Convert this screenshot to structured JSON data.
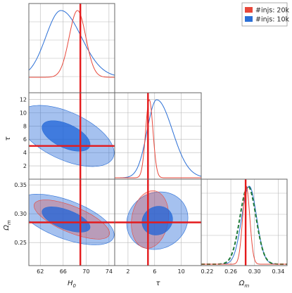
{
  "chart_data": {
    "type": "corner",
    "legend": {
      "placement": "top-right",
      "entries": [
        {
          "label": "#injs: 20k",
          "color": "#e8483b"
        },
        {
          "label": "#injs: 10k",
          "color": "#2b6fd6"
        }
      ]
    },
    "colors": {
      "red": "#e8483b",
      "blue": "#2b6fd6",
      "truth": "#e41a1c",
      "green": "#1f7a3a",
      "blueFill": "#1f63d8",
      "redFill": "#e8483b",
      "grid": "#b8b8b8",
      "frame": "#666666"
    },
    "params": [
      {
        "key": "H0",
        "label": "H",
        "sub": "0",
        "range": [
          60,
          75
        ],
        "ticks": [
          62,
          66,
          70,
          74
        ],
        "truth": 69
      },
      {
        "key": "tau",
        "label": "τ",
        "sub": "",
        "range": [
          0,
          13
        ],
        "ticks": [
          2,
          4,
          6,
          8,
          10,
          12
        ],
        "truth": 5
      },
      {
        "key": "Om",
        "label": "Ω",
        "sub": "m",
        "range": [
          0.21,
          0.36
        ],
        "ticks": [
          0.25,
          0.3,
          0.35
        ],
        "truth": 0.285
      }
    ],
    "om_ticks_x": [
      0.22,
      0.26,
      0.3,
      0.34
    ],
    "om_ticks_x_labels": [
      "0.22",
      "0.26",
      "0.30",
      "0.34"
    ],
    "om_ticks_y_labels": [
      "0.25",
      "0.30",
      "0.35"
    ],
    "tau_ticks_x": [
      2,
      6,
      10
    ],
    "marginals": {
      "H0": {
        "20k": {
          "mean": 68.5,
          "sd": 1.45
        },
        "10k": {
          "mean": 65.6,
          "sd": 3.1
        }
      },
      "tau": {
        "20k": {
          "mean": 5.2,
          "sd": 0.55
        },
        "10k": {
          "mean": 6.3,
          "sd": 1.9
        }
      },
      "Om": {
        "20k": {
          "mean": 0.286,
          "sd": 0.006
        },
        "10k": {
          "mean": 0.291,
          "sd": 0.0125
        },
        "extra_dashed": {
          "mean": 0.289,
          "sd": 0.0135
        }
      }
    },
    "contours_2d": {
      "H0_tau": {
        "10k": {
          "center": [
            66.5,
            6.5
          ],
          "sx": 4.2,
          "sy": 2.3,
          "rho": -0.55
        }
      },
      "H0_Om": {
        "20k": {
          "center": [
            67.5,
            0.29
          ],
          "sx": 3.3,
          "sy": 0.017,
          "rho": -0.7
        },
        "10k": {
          "center": [
            66.5,
            0.29
          ],
          "sx": 4.2,
          "sy": 0.022,
          "rho": -0.6
        }
      },
      "tau_Om": {
        "20k": {
          "center": [
            5.3,
            0.29
          ],
          "sx": 1.4,
          "sy": 0.025,
          "rho": 0.15
        },
        "10k": {
          "center": [
            6.4,
            0.288
          ],
          "sx": 2.3,
          "sy": 0.025,
          "rho": 0.1
        }
      }
    },
    "grid": true
  }
}
